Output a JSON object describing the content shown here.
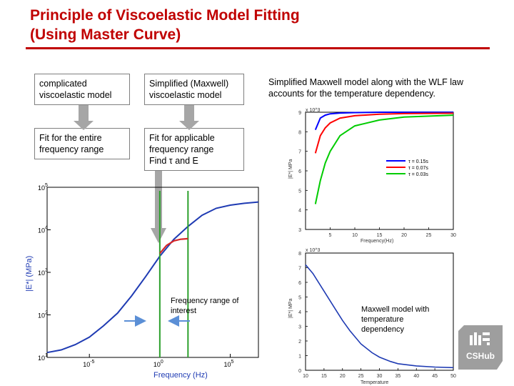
{
  "title": {
    "line1": "Principle of Viscoelastic Model Fitting",
    "line2": "(Using Master Curve)"
  },
  "boxes": {
    "complicated": "complicated viscoelastic model",
    "simplified": "Simplified (Maxwell) viscoelastic model",
    "fit_entire": "Fit for the entire frequency range",
    "fit_applicable_l1": "Fit for applicable",
    "fit_applicable_l2": "frequency range",
    "fit_applicable_l3": "Find τ and E"
  },
  "notes": {
    "wlf": "Simplified Maxwell model along with the WLF law accounts for the temperature dependency.",
    "freq_interest": "Frequency range of interest",
    "maxwell_temp": "Maxwell model with temperature dependency"
  },
  "colors": {
    "title": "#c00000",
    "arrow": "#a6a6a6",
    "master": "#1f3bb3",
    "fit": "#d62728",
    "band": "#2ca02c",
    "interest_arrow": "#5b8fd6",
    "tau1": "#0000ff",
    "tau2": "#ff0000",
    "tau3": "#00cc00"
  },
  "logo_text": "CSHub",
  "chart_data": [
    {
      "type": "line",
      "xlabel": "Frequency (Hz)",
      "ylabel": "|E*| (MPa)",
      "x_scale": "log",
      "y_scale": "log",
      "xlim": [
        1e-08,
        10000000.0
      ],
      "ylim": [
        10,
        100000
      ],
      "x_ticks": [
        "10^-5",
        "10^0",
        "10^5"
      ],
      "y_ticks": [
        "10^1",
        "10^2",
        "10^3",
        "10^4",
        "10^5"
      ],
      "series": [
        {
          "x": [
            1e-08,
            1e-07,
            1e-06,
            1e-05,
            0.0001,
            0.001,
            0.01,
            0.1,
            1,
            10,
            100,
            1000.0,
            10000.0,
            100000.0,
            1000000.0,
            10000000.0
          ],
          "y": [
            13,
            15,
            20,
            30,
            55,
            110,
            280,
            800,
            2400,
            6000,
            12000,
            22000,
            32000,
            38000,
            42000,
            45000
          ]
        },
        {
          "x": [
            1,
            3,
            10,
            30,
            100
          ],
          "y": [
            2800,
            4300,
            5500,
            6000,
            6200
          ]
        }
      ],
      "interest_band": [
        1,
        100
      ]
    },
    {
      "type": "line",
      "xlabel": "Frequency(Hz)",
      "ylabel": "|E*| MPa",
      "y_multiplier": "x 10^3",
      "xlim": [
        0,
        30
      ],
      "ylim": [
        3,
        9
      ],
      "x_ticks": [
        "5",
        "10",
        "15",
        "20",
        "25",
        "30"
      ],
      "y_ticks": [
        "3",
        "4",
        "5",
        "6",
        "7",
        "8",
        "9"
      ],
      "legend": [
        "τ = 0.15s",
        "τ = 0.07s",
        "τ = 0.03s"
      ],
      "series": [
        {
          "name": "τ = 0.15s",
          "x": [
            2,
            3,
            4,
            5,
            7,
            10,
            15,
            20,
            30
          ],
          "y": [
            8.1,
            8.7,
            8.85,
            8.92,
            8.96,
            8.98,
            9.0,
            9.0,
            9.0
          ]
        },
        {
          "name": "τ = 0.07s",
          "x": [
            2,
            3,
            4,
            5,
            7,
            10,
            15,
            20,
            30
          ],
          "y": [
            6.9,
            7.8,
            8.2,
            8.45,
            8.7,
            8.82,
            8.9,
            8.93,
            8.95
          ]
        },
        {
          "name": "τ = 0.03s",
          "x": [
            2,
            3,
            4,
            5,
            7,
            10,
            15,
            20,
            30
          ],
          "y": [
            4.3,
            5.5,
            6.4,
            7.0,
            7.8,
            8.3,
            8.6,
            8.75,
            8.85
          ]
        }
      ]
    },
    {
      "type": "line",
      "xlabel": "Temperature",
      "ylabel": "|E*| MPa",
      "y_multiplier": "x 10^3",
      "xlim": [
        10,
        50
      ],
      "ylim": [
        0,
        8
      ],
      "x_ticks": [
        "10",
        "15",
        "20",
        "25",
        "30",
        "35",
        "40",
        "45",
        "50"
      ],
      "y_ticks": [
        "0",
        "1",
        "2",
        "3",
        "4",
        "5",
        "6",
        "7",
        "8"
      ],
      "series": [
        {
          "x": [
            10,
            12,
            15,
            18,
            20,
            22,
            25,
            28,
            30,
            33,
            35,
            40,
            45,
            50
          ],
          "y": [
            7.2,
            6.6,
            5.4,
            4.2,
            3.4,
            2.7,
            1.8,
            1.2,
            0.9,
            0.6,
            0.45,
            0.3,
            0.22,
            0.18
          ]
        }
      ]
    }
  ]
}
